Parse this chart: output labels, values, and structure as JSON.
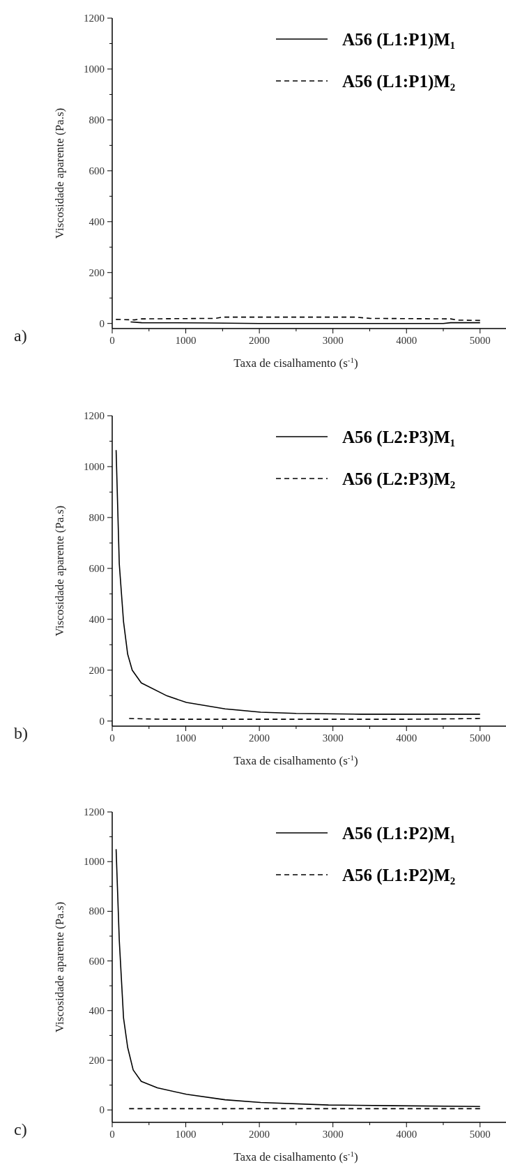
{
  "chart_data": [
    {
      "type": "line",
      "xlabel": "Taxa de cisalhamento (s$^{-1}$)",
      "ylabel": "Viscosidade aparente (Pa.s)",
      "annotations": [
        "a)"
      ],
      "xlim": [
        0,
        5400
      ],
      "ylim": [
        -20,
        1200
      ],
      "xticks": [
        0,
        {
          "value": 500,
          "label": null
        },
        1000,
        {
          "value": 1500,
          "label": null
        },
        2000,
        {
          "value": 2500,
          "label": null
        },
        3000,
        {
          "value": 3500,
          "label": null
        },
        4000,
        {
          "value": 4500,
          "label": null
        },
        5000
      ],
      "yticks": [
        0,
        {
          "value": 100,
          "label": null
        },
        200,
        {
          "value": 300,
          "label": null
        },
        400,
        {
          "value": 500,
          "label": null
        },
        600,
        {
          "value": 700,
          "label": null
        },
        800,
        {
          "value": 900,
          "label": null
        },
        1000,
        {
          "value": 1100,
          "label": null
        },
        1200
      ],
      "legend": "top right",
      "grid": false,
      "series": [
        {
          "name": "A56 (L1:P1)M₁",
          "color": "#000000",
          "line_style": "solid",
          "x": [
            250,
            400,
            1300,
            2000,
            3000,
            4500,
            4600,
            5000
          ],
          "values": [
            6,
            3,
            2,
            0,
            0,
            0,
            3,
            3
          ]
        },
        {
          "name": "A56 (L1:P1)M₂",
          "color": "#000000",
          "line_style": "dashed",
          "x": [
            50,
            300,
            400,
            1400,
            1500,
            3300,
            3500,
            4600,
            4700,
            5000
          ],
          "values": [
            16,
            14,
            18,
            20,
            25,
            25,
            20,
            18,
            13,
            12
          ]
        }
      ]
    },
    {
      "type": "line",
      "xlabel": "Taxa de cisalhamento (s$^{-1}$)",
      "ylabel": "Viscosidade aparente (Pa.s)",
      "annotations": [
        "b)"
      ],
      "xlim": [
        0,
        5400
      ],
      "ylim": [
        -20,
        1200
      ],
      "xticks": [
        0,
        {
          "value": 500,
          "label": null
        },
        1000,
        {
          "value": 1500,
          "label": null
        },
        2000,
        {
          "value": 2500,
          "label": null
        },
        3000,
        {
          "value": 3500,
          "label": null
        },
        4000,
        {
          "value": 4500,
          "label": null
        },
        5000
      ],
      "yticks": [
        0,
        {
          "value": 100,
          "label": null
        },
        200,
        {
          "value": 300,
          "label": null
        },
        400,
        {
          "value": 500,
          "label": null
        },
        600,
        {
          "value": 700,
          "label": null
        },
        800,
        {
          "value": 900,
          "label": null
        },
        1000,
        {
          "value": 1100,
          "label": null
        },
        1200
      ],
      "legend": "top right",
      "grid": false,
      "series": [
        {
          "name": "A56 (L2:P3)M₁",
          "color": "#000000",
          "line_style": "solid",
          "x": [
            53,
            96,
            154,
            210,
            272,
            395,
            745,
            1009,
            1535,
            2018,
            2500,
            3377,
            5000
          ],
          "values": [
            1065,
            618,
            390,
            263,
            200,
            150,
            99,
            73,
            48,
            35,
            30,
            27,
            27
          ]
        },
        {
          "name": "A56 (L2:P3)M₂",
          "color": "#000000",
          "line_style": "dashed",
          "x": [
            230,
            700,
            4000,
            5000
          ],
          "values": [
            10,
            7,
            7,
            10
          ]
        }
      ]
    },
    {
      "type": "line",
      "xlabel": "Taxa de cisalhamento (s$^{-1}$)",
      "ylabel": "Viscosidade aparente (Pa.s)",
      "annotations": [
        "c)"
      ],
      "xlim": [
        0,
        5400
      ],
      "ylim": [
        -50,
        1200
      ],
      "xticks": [
        0,
        {
          "value": 500,
          "label": null
        },
        1000,
        {
          "value": 1500,
          "label": null
        },
        2000,
        {
          "value": 2500,
          "label": null
        },
        3000,
        {
          "value": 3500,
          "label": null
        },
        4000,
        {
          "value": 4500,
          "label": null
        },
        5000
      ],
      "yticks": [
        0,
        {
          "value": 100,
          "label": null
        },
        200,
        {
          "value": 300,
          "label": null
        },
        400,
        {
          "value": 500,
          "label": null
        },
        600,
        {
          "value": 700,
          "label": null
        },
        800,
        {
          "value": 900,
          "label": null
        },
        1000,
        {
          "value": 1100,
          "label": null
        },
        1200
      ],
      "legend": "top right",
      "grid": false,
      "series": [
        {
          "name": "A56 (L1:P2)M₁",
          "color": "#000000",
          "line_style": "solid",
          "x": [
            53,
            96,
            154,
            210,
            285,
            395,
            614,
            1009,
            1535,
            2018,
            2939,
            3816,
            5000
          ],
          "values": [
            1050,
            684,
            370,
            252,
            161,
            115,
            89,
            63,
            41,
            30,
            20,
            17,
            14
          ]
        },
        {
          "name": "A56 (L1:P2)M₂",
          "color": "#000000",
          "line_style": "dashed",
          "x": [
            230,
            5000
          ],
          "values": [
            5,
            5
          ]
        }
      ]
    }
  ]
}
